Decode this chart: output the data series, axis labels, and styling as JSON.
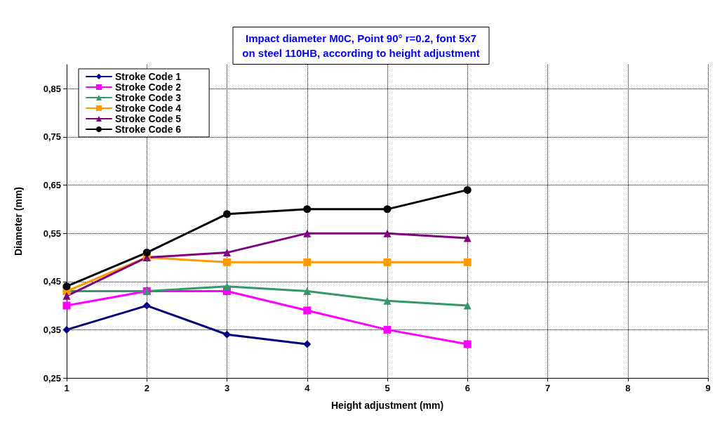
{
  "chart_data": {
    "type": "line",
    "title": "Impact diameter M0C, Point 90° r=0.2, font 5x7\non steel 110HB, according to height adjustment",
    "xlabel": "Height adjustment (mm)",
    "ylabel": "Diameter (mm)",
    "xlim": [
      1,
      9
    ],
    "xticks": [
      1,
      2,
      3,
      4,
      5,
      6,
      7,
      8,
      9
    ],
    "ylim": [
      0.25,
      0.9
    ],
    "yticks": [
      {
        "value": 0.25,
        "label": "0,25"
      },
      {
        "value": 0.35,
        "label": "0,35"
      },
      {
        "value": 0.45,
        "label": "0,45"
      },
      {
        "value": 0.55,
        "label": "0,55"
      },
      {
        "value": 0.65,
        "label": "0,65"
      },
      {
        "value": 0.75,
        "label": "0,75"
      },
      {
        "value": 0.85,
        "label": "0,85"
      }
    ],
    "grid": true,
    "legend": "top left",
    "line_style": "solid",
    "x": [
      1,
      2,
      3,
      4,
      5,
      6
    ],
    "series": [
      {
        "name": "Stroke Code 1",
        "color": "#000080",
        "marker": "diamond",
        "x": [
          1,
          2,
          3,
          4
        ],
        "values": [
          0.35,
          0.4,
          0.34,
          0.32
        ]
      },
      {
        "name": "Stroke Code 2",
        "color": "#ff00ff",
        "marker": "square",
        "values": [
          0.4,
          0.43,
          0.43,
          0.39,
          0.35,
          0.32
        ]
      },
      {
        "name": "Stroke Code 3",
        "color": "#339966",
        "marker": "triangle",
        "values": [
          0.43,
          0.43,
          0.44,
          0.43,
          0.41,
          0.4
        ]
      },
      {
        "name": "Stroke Code 4",
        "color": "#ff9900",
        "marker": "square",
        "values": [
          0.43,
          0.5,
          0.49,
          0.49,
          0.49,
          0.49
        ]
      },
      {
        "name": "Stroke Code 5",
        "color": "#800080",
        "marker": "triangle",
        "values": [
          0.42,
          0.5,
          0.51,
          0.55,
          0.55,
          0.54
        ]
      },
      {
        "name": "Stroke Code 6",
        "color": "#000000",
        "marker": "circle",
        "values": [
          0.44,
          0.51,
          0.59,
          0.6,
          0.6,
          0.64
        ]
      }
    ]
  }
}
